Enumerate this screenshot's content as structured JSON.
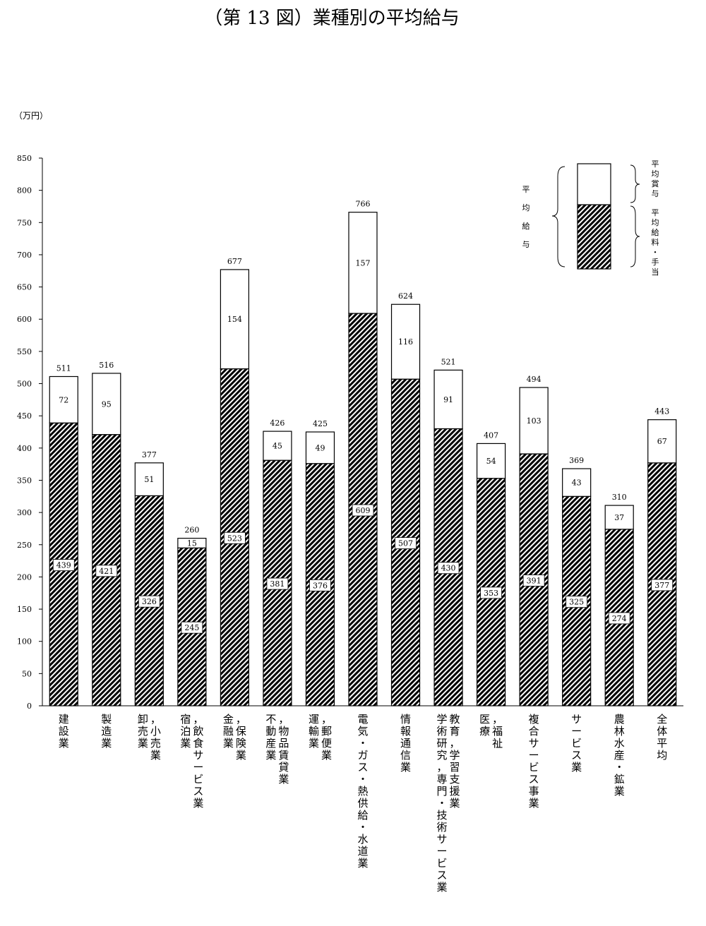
{
  "chart_data": {
    "type": "bar",
    "stacked": true,
    "title": "（第 13 図）業種別の平均給与",
    "ylabel": "（万円）",
    "xlabel": "",
    "ylim": [
      0,
      850
    ],
    "yticks": [
      0,
      50,
      100,
      150,
      200,
      250,
      300,
      350,
      400,
      450,
      500,
      550,
      600,
      650,
      700,
      750,
      800,
      850
    ],
    "grid": false,
    "categories": [
      {
        "lines": [
          "建設業"
        ]
      },
      {
        "lines": [
          "製造業"
        ]
      },
      {
        "lines": [
          "卸売業",
          "，小売業"
        ]
      },
      {
        "lines": [
          "宿泊業",
          "，飲食サービス業"
        ]
      },
      {
        "lines": [
          "金融業",
          "，保険業"
        ]
      },
      {
        "lines": [
          "不動産業",
          "，物品賃貸業"
        ]
      },
      {
        "lines": [
          "運輸業",
          "，郵便業"
        ]
      },
      {
        "lines": [
          "電気・ガス・熱供給・水道業"
        ]
      },
      {
        "lines": [
          "情報通信業"
        ]
      },
      {
        "lines": [
          "学術研究，専門・技術サービス業",
          "教育，学習支援業"
        ]
      },
      {
        "lines": [
          "医療",
          "，福祉"
        ]
      },
      {
        "lines": [
          "複合サービス事業"
        ]
      },
      {
        "lines": [
          "サービス業"
        ]
      },
      {
        "lines": [
          "農林水産・鉱業"
        ]
      },
      {
        "lines": [
          "全体平均"
        ]
      }
    ],
    "series": [
      {
        "name": "平均給料・手当",
        "values": [
          439,
          421,
          326,
          245,
          523,
          381,
          376,
          609,
          507,
          430,
          353,
          391,
          325,
          274,
          377
        ]
      },
      {
        "name": "平均賞与",
        "values": [
          72,
          95,
          51,
          15,
          154,
          45,
          49,
          157,
          116,
          91,
          54,
          103,
          43,
          37,
          67
        ]
      }
    ],
    "totals": [
      511,
      516,
      377,
      260,
      677,
      426,
      425,
      766,
      624,
      521,
      407,
      494,
      369,
      310,
      443
    ],
    "legend": {
      "placement": "top-right",
      "total_label": "平均給与",
      "upper_label": "平均賞与",
      "lower_label": "平均給料・手当"
    },
    "colors": {
      "hatch": "#000000",
      "fill": "#ffffff"
    }
  }
}
